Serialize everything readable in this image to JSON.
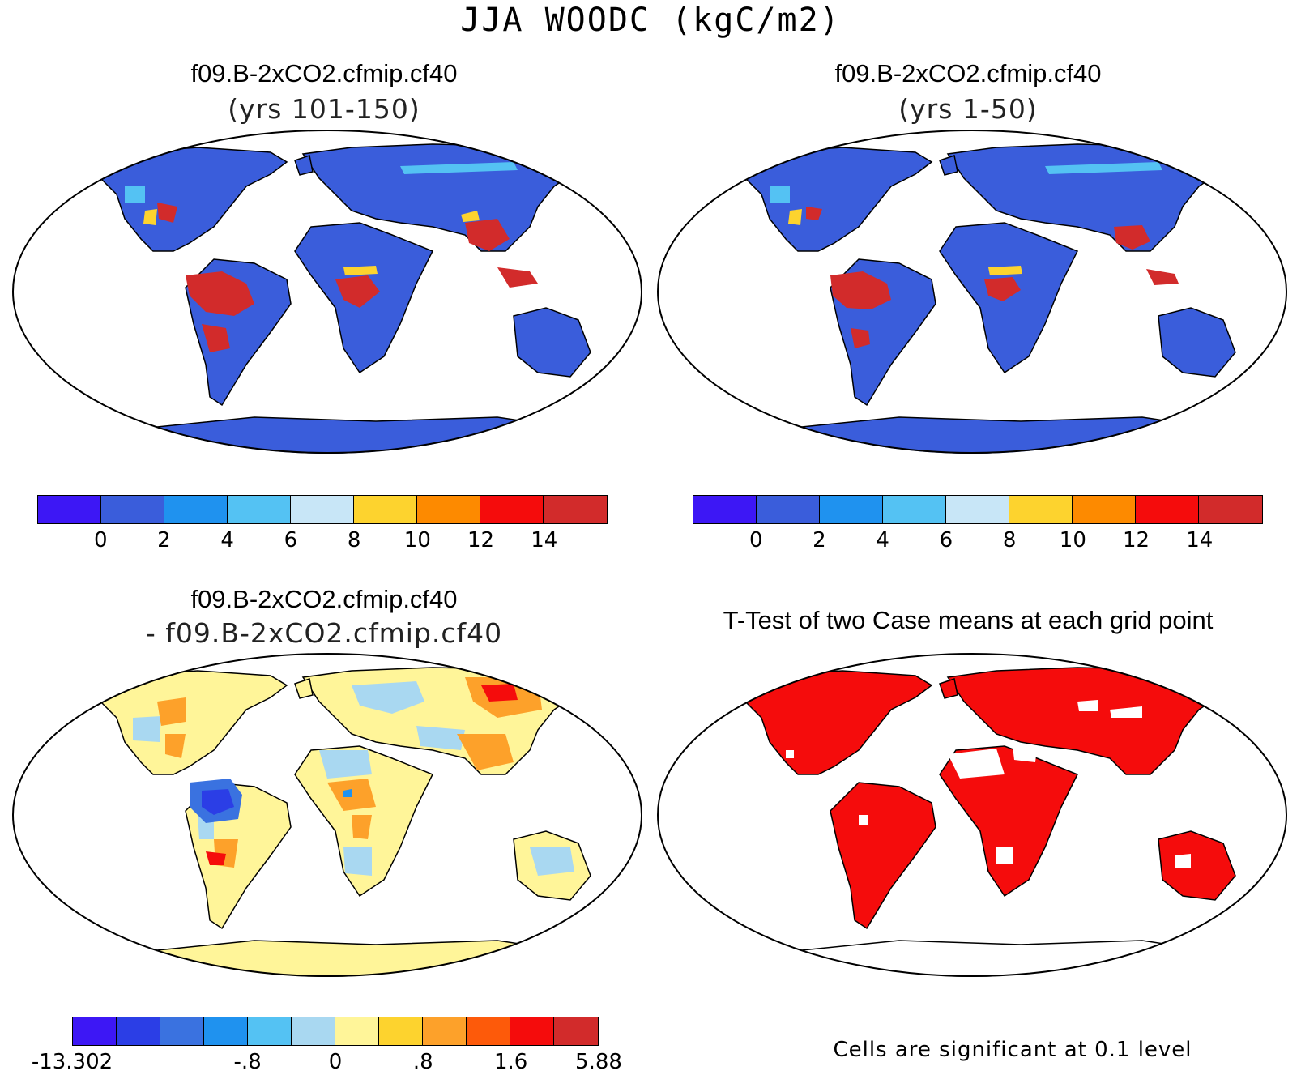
{
  "title": "JJA WOODC (kgC/m2)",
  "panels": [
    {
      "title": "f09.B-2xCO2.cfmip.cf40",
      "subtitle": "(yrs 101-150)",
      "kind": "mean"
    },
    {
      "title": "f09.B-2xCO2.cfmip.cf40",
      "subtitle": "(yrs 1-50)",
      "kind": "mean"
    },
    {
      "title": "f09.B-2xCO2.cfmip.cf40",
      "subtitle": "- f09.B-2xCO2.cfmip.cf40",
      "kind": "diff"
    },
    {
      "title": "T-Test of two Case means at each grid point",
      "subtitle": "",
      "kind": "ttest"
    }
  ],
  "colorbars": {
    "mean": {
      "colors": [
        "#3d17f5",
        "#3a5ddb",
        "#1f92ef",
        "#54c2f3",
        "#c8e6f7",
        "#fdd32e",
        "#fd8a00",
        "#f50c0c",
        "#d22b2b"
      ],
      "ticks": [
        "0",
        "2",
        "4",
        "6",
        "8",
        "10",
        "12",
        "14"
      ]
    },
    "diff": {
      "colors": [
        "#3d17f5",
        "#2b3ee6",
        "#3a72e0",
        "#1f92ef",
        "#54c2f3",
        "#a9d8f1",
        "#fff599",
        "#fdd32e",
        "#fda12a",
        "#fd5a0a",
        "#f50c0c",
        "#d22b2b"
      ],
      "ticks": [
        "-13.302",
        "-.8",
        "0",
        ".8",
        "1.6",
        "5.88"
      ]
    }
  },
  "significance_note": "Cells are significant at 0.1 level",
  "legend_colors": {
    "significant": "#f50c0c",
    "land_base": "#3a5ddb",
    "diff_base": "#fff599",
    "ocean": "#ffffff"
  }
}
